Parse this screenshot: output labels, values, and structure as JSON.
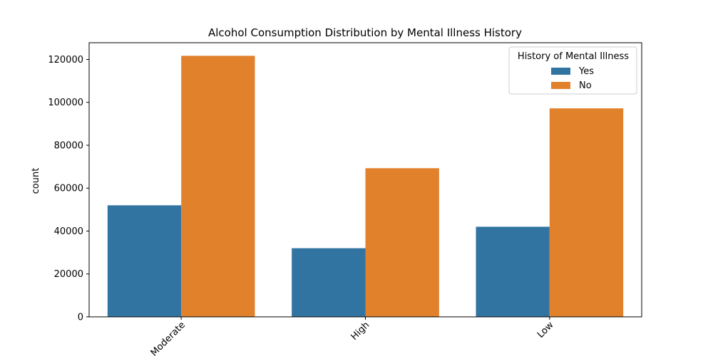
{
  "chart_data": {
    "type": "bar",
    "title": "Alcohol Consumption Distribution by Mental Illness History",
    "xlabel": "",
    "ylabel": "count",
    "categories": [
      "Moderate",
      "High",
      "Low"
    ],
    "series": [
      {
        "name": "Yes",
        "values": [
          52000,
          32000,
          42000
        ],
        "color": "#3274a1"
      },
      {
        "name": "No",
        "values": [
          121700,
          69300,
          97200
        ],
        "color": "#e1812c"
      }
    ],
    "ylim": [
      0,
      127800
    ],
    "yticks": [
      0,
      20000,
      40000,
      60000,
      80000,
      100000,
      120000
    ],
    "ytick_labels": [
      "0",
      "20000",
      "40000",
      "60000",
      "80000",
      "100000",
      "120000"
    ],
    "xtick_rotation": 45,
    "grid": false,
    "legend": {
      "title": "History of Mental Illness",
      "placement": "top-right"
    }
  }
}
